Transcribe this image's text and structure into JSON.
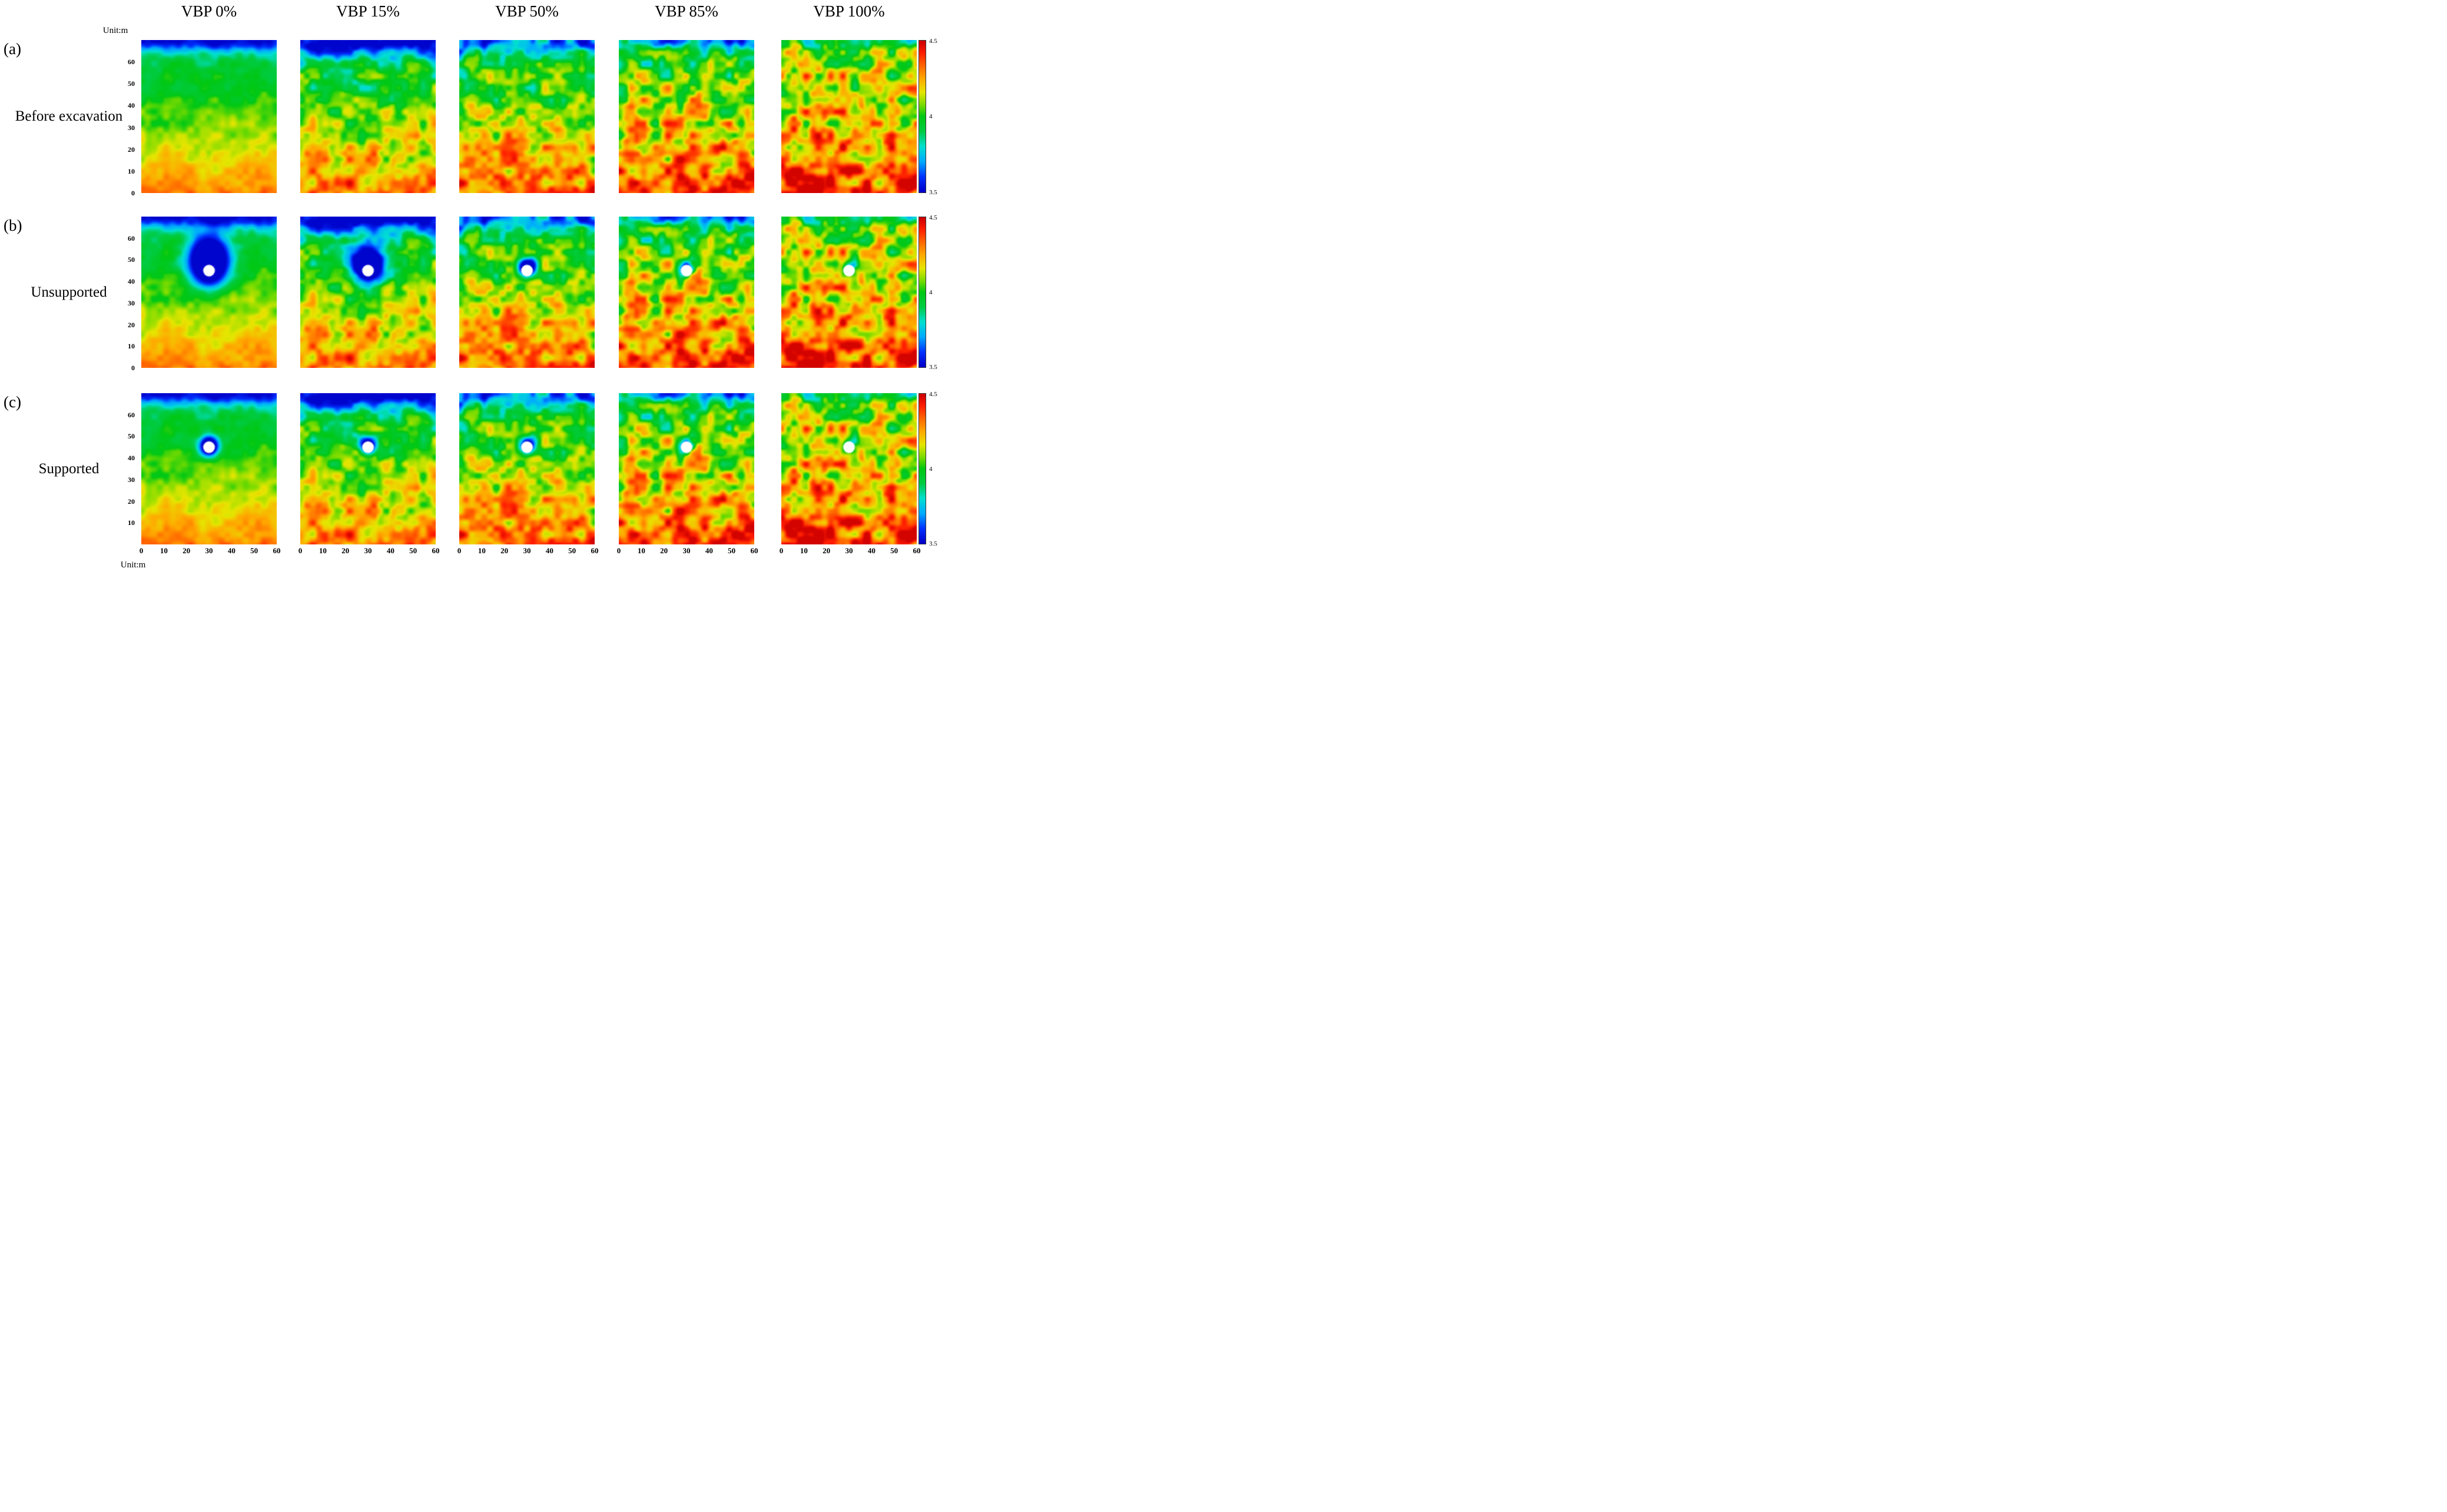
{
  "figure": {
    "unit_label_top": "Unit:m",
    "unit_label_bottom": "Unit:m",
    "columns": [
      "VBP 0%",
      "VBP 15%",
      "VBP 50%",
      "VBP 85%",
      "VBP 100%"
    ],
    "rows": [
      {
        "letter": "(a)",
        "title": "Before excavation",
        "y_ticks": [
          60,
          50,
          40,
          30,
          20,
          10,
          0
        ]
      },
      {
        "letter": "(b)",
        "title": "Unsupported",
        "y_ticks": [
          60,
          50,
          40,
          30,
          20,
          10,
          0
        ]
      },
      {
        "letter": "(c)",
        "title": "Supported",
        "y_ticks": [
          60,
          50,
          40,
          30,
          20,
          10
        ]
      }
    ],
    "x_ticks": [
      0,
      10,
      20,
      30,
      40,
      50,
      60
    ],
    "colorbar_labels": {
      "max": "4.5",
      "mid": "4",
      "min": "3.5"
    }
  },
  "chart_data": {
    "type": "heatmap",
    "title": "",
    "col_labels": [
      "VBP 0%",
      "VBP 15%",
      "VBP 50%",
      "VBP 85%",
      "VBP 100%"
    ],
    "row_labels": [
      "(a) Before excavation",
      "(b) Unsupported",
      "(c) Supported"
    ],
    "x_unit": "Unit:m",
    "y_unit": "Unit:m",
    "x_range": [
      0,
      60
    ],
    "y_range": [
      0,
      70
    ],
    "x_ticks": [
      0,
      10,
      20,
      30,
      40,
      50,
      60
    ],
    "y_ticks": [
      0,
      10,
      20,
      30,
      40,
      50,
      60
    ],
    "grid": false,
    "legend_position": "colorbar-right-of-each-row",
    "colorbar": {
      "min": 3.5,
      "max": 4.5,
      "ticks": [
        3.5,
        4,
        4.5
      ],
      "colormap": "jet",
      "stops": [
        {
          "p": 0.0,
          "c": "#0000c8"
        },
        {
          "p": 0.1,
          "c": "#0032ff"
        },
        {
          "p": 0.2,
          "c": "#00aaff"
        },
        {
          "p": 0.3,
          "c": "#00e0d2"
        },
        {
          "p": 0.4,
          "c": "#00cc44"
        },
        {
          "p": 0.5,
          "c": "#00c814"
        },
        {
          "p": 0.58,
          "c": "#7ddc00"
        },
        {
          "p": 0.66,
          "c": "#e6e600"
        },
        {
          "p": 0.75,
          "c": "#ffaa00"
        },
        {
          "p": 0.84,
          "c": "#ff6400"
        },
        {
          "p": 0.92,
          "c": "#ff1e00"
        },
        {
          "p": 1.0,
          "c": "#cd0000"
        }
      ]
    },
    "field_description": "Random heterogeneous contour fields (values 3.5-4.5) increasing with depth and with VBP percentage; excavated rows show a white tunnel opening at (30,45) with a low-value disturbed zone that shrinks as VBP increases and when supported.",
    "columns_model": [
      {
        "label": "VBP 0%",
        "seed": 11,
        "top": 3.88,
        "bottom": 4.3,
        "noise_amp": 0.07,
        "surface_band": 0.38,
        "band_width": 0.07
      },
      {
        "label": "VBP 15%",
        "seed": 88,
        "top": 3.88,
        "bottom": 4.32,
        "noise_amp": 0.16,
        "surface_band": 0.4,
        "band_width": 0.1
      },
      {
        "label": "VBP 50%",
        "seed": 165,
        "top": 3.92,
        "bottom": 4.34,
        "noise_amp": 0.18,
        "surface_band": 0.3,
        "band_width": 0.08
      },
      {
        "label": "VBP 85%",
        "seed": 242,
        "top": 3.98,
        "bottom": 4.36,
        "noise_amp": 0.21,
        "surface_band": 0.22,
        "band_width": 0.06
      },
      {
        "label": "VBP 100%",
        "seed": 319,
        "top": 4.05,
        "bottom": 4.4,
        "noise_amp": 0.22,
        "surface_band": 0.12,
        "band_width": 0.05
      }
    ],
    "rows_model": [
      {
        "label": "Before excavation",
        "excavation": null
      },
      {
        "label": "Unsupported",
        "excavation": {
          "hole": {
            "x": 30,
            "y": 45,
            "r": 2.6
          },
          "disturbance": [
            {
              "s": 1.05,
              "rx": 8.5,
              "ry": 11.0,
              "cy": 49.0
            },
            {
              "s": 1.0,
              "rx": 7.0,
              "ry": 9.0,
              "cy": 48.0
            },
            {
              "s": 0.8,
              "rx": 3.8,
              "ry": 4.2,
              "cy": 46.5
            },
            {
              "s": 0.55,
              "rx": 3.2,
              "ry": 3.4,
              "cy": 46.0
            },
            {
              "s": 0.5,
              "rx": 3.0,
              "ry": 3.2,
              "cy": 46.0
            }
          ]
        }
      },
      {
        "label": "Supported",
        "excavation": {
          "hole": {
            "x": 30,
            "y": 45,
            "r": 2.6
          },
          "disturbance": [
            {
              "s": 0.85,
              "rx": 4.2,
              "ry": 4.6,
              "cy": 45.5
            },
            {
              "s": 0.65,
              "rx": 3.6,
              "ry": 3.8,
              "cy": 45.5
            },
            {
              "s": 0.6,
              "rx": 3.4,
              "ry": 3.6,
              "cy": 45.5
            },
            {
              "s": 0.5,
              "rx": 3.1,
              "ry": 3.3,
              "cy": 45.5
            },
            {
              "s": 0.45,
              "rx": 3.0,
              "ry": 3.2,
              "cy": 45.5
            }
          ]
        }
      }
    ]
  }
}
